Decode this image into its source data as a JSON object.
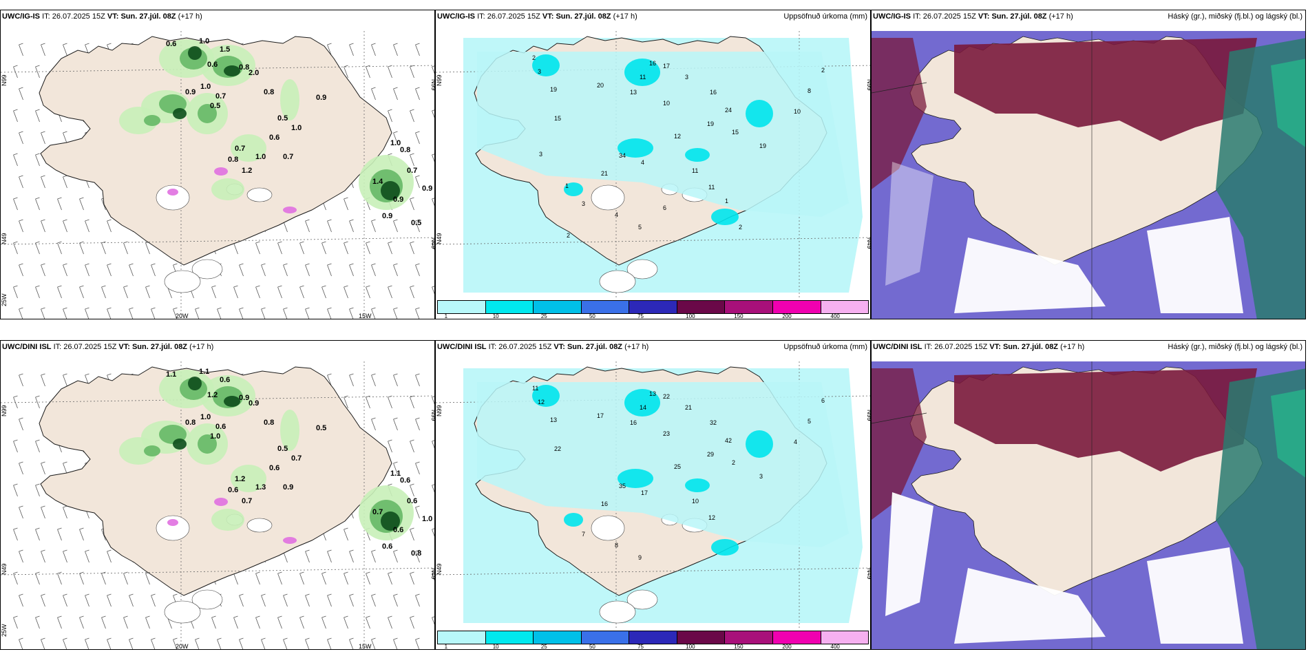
{
  "palette": {
    "land": "#f2e6da",
    "sea": "#ffffff",
    "light_green": "#c8f0b8",
    "mid_green": "#66b866",
    "dark_green": "#0e4e1c",
    "magenta": "#e070e0",
    "cyan_light": "#b8f6f8",
    "cyan": "#00e4ec",
    "dark_red": "#7a1a3c",
    "blue_violet": "#5a50c8",
    "teal": "#2a7a70"
  },
  "legend": {
    "colors": [
      "#b8f8fa",
      "#00e8ee",
      "#00c0e8",
      "#3a70e8",
      "#2c28b8",
      "#6a0848",
      "#a8107a",
      "#f000b0",
      "#f6b0f0"
    ],
    "labels": [
      "1",
      "10",
      "25",
      "50",
      "75",
      "100",
      "150",
      "200",
      "400"
    ]
  },
  "panels": [
    {
      "model": "UWC/IG-IS",
      "it_label": "IT:",
      "it": "26.07.2025 15Z",
      "vt_label": "VT:",
      "vt": "Sun. 27.júl. 08Z",
      "lead": "(+17 h)",
      "right_title": "",
      "axis": {
        "lat_top": "N99",
        "lat_bottom": "N49",
        "lon_left": "20W",
        "lon_right": "15W",
        "corner": "25W"
      },
      "values": [
        "0.6",
        "1.0",
        "1.5",
        "0.6",
        "0.8",
        "2.0",
        "0.9",
        "1.0",
        "0.7",
        "0.5",
        "0.8",
        "0.9",
        "0.5",
        "1.0",
        "0.6",
        "0.7",
        "0.8",
        "1.2",
        "1.0",
        "0.7",
        "1.0",
        "0.8",
        "0.7",
        "1.4",
        "0.9",
        "0.9",
        "0.5",
        "0.9"
      ]
    },
    {
      "model": "UWC/IG-IS",
      "it_label": "IT:",
      "it": "26.07.2025 15Z",
      "vt_label": "VT:",
      "vt": "Sun. 27.júl. 08Z",
      "lead": "(+17 h)",
      "right_title": "Uppsöfnuð úrkoma (mm)",
      "axis": {
        "lat_top": "N99",
        "lat_bottom": "N49",
        "lon_left": "",
        "lon_right": "",
        "corner": ""
      },
      "values": [
        "2",
        "3",
        "19",
        "15",
        "20",
        "13",
        "11",
        "16",
        "17",
        "3",
        "10",
        "16",
        "24",
        "19",
        "12",
        "34",
        "21",
        "4",
        "11",
        "11",
        "15",
        "19",
        "10",
        "8",
        "2",
        "3",
        "4",
        "5",
        "6",
        "2",
        "3",
        "1",
        "1",
        "2"
      ]
    },
    {
      "model": "UWC/IG-IS",
      "it_label": "IT:",
      "it": "26.07.2025 15Z",
      "vt_label": "VT:",
      "vt": "Sun. 27.júl. 08Z",
      "lead": "(+17 h)",
      "right_title": "Háský (gr.), miðský (fj.bl.) og lágský (bl.)",
      "axis": {
        "lat_top": "",
        "lat_bottom": "",
        "lon_left": "",
        "lon_right": "",
        "corner": ""
      },
      "values": []
    },
    {
      "model": "UWC/DINI ISL",
      "it_label": "IT:",
      "it": "26.07.2025 15Z",
      "vt_label": "VT:",
      "vt": "Sun. 27.júl. 08Z",
      "lead": "(+17 h)",
      "right_title": "",
      "axis": {
        "lat_top": "N99",
        "lat_bottom": "N49",
        "lon_left": "20W",
        "lon_right": "15W",
        "corner": "25W"
      },
      "values": [
        "1.1",
        "1.1",
        "0.6",
        "1.2",
        "0.9",
        "0.9",
        "0.8",
        "1.0",
        "0.6",
        "1.0",
        "0.8",
        "0.5",
        "0.5",
        "0.7",
        "0.6",
        "1.2",
        "0.6",
        "0.7",
        "1.3",
        "0.9",
        "1.1",
        "0.6",
        "0.6",
        "0.7",
        "0.6",
        "0.6",
        "0.8",
        "1.0"
      ]
    },
    {
      "model": "UWC/DINI ISL",
      "it_label": "IT:",
      "it": "26.07.2025 15Z",
      "vt_label": "VT:",
      "vt": "Sun. 27.júl. 08Z",
      "lead": "(+17 h)",
      "right_title": "Uppsöfnuð úrkoma (mm)",
      "axis": {
        "lat_top": "N99",
        "lat_bottom": "N49",
        "lon_left": "",
        "lon_right": "",
        "corner": ""
      },
      "values": [
        "11",
        "12",
        "13",
        "22",
        "17",
        "16",
        "14",
        "13",
        "22",
        "21",
        "23",
        "32",
        "42",
        "29",
        "25",
        "35",
        "16",
        "17",
        "10",
        "12",
        "2",
        "3",
        "4",
        "5",
        "6",
        "7",
        "8",
        "9"
      ]
    },
    {
      "model": "UWC/DINI ISL",
      "it_label": "IT:",
      "it": "26.07.2025 15Z",
      "vt_label": "VT:",
      "vt": "Sun. 27.júl. 08Z",
      "lead": "(+17 h)",
      "right_title": "Háský (gr.), miðský (fj.bl.) og lágský (bl.)",
      "axis": {
        "lat_top": "",
        "lat_bottom": "",
        "lon_left": "",
        "lon_right": "",
        "corner": ""
      },
      "values": []
    }
  ]
}
